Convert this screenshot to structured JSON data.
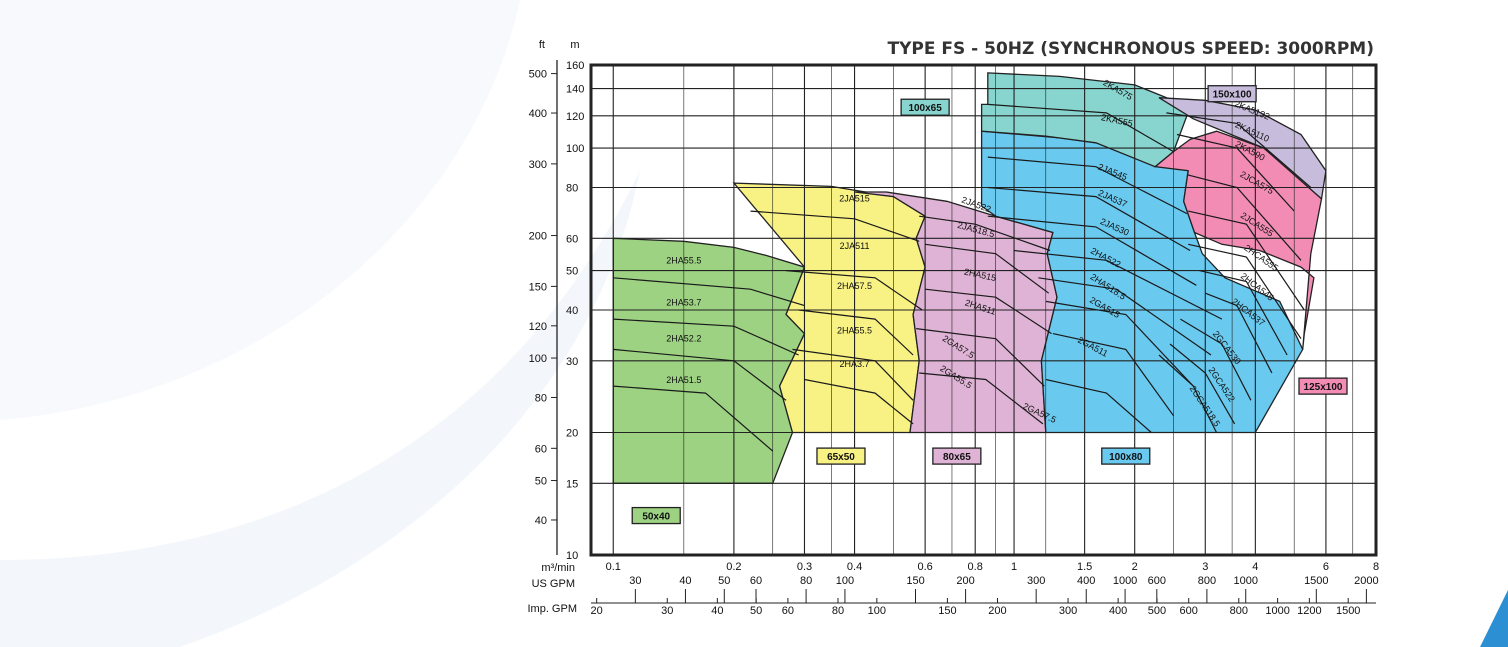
{
  "chart_data": {
    "type": "area",
    "title": "TYPE FS - 50HZ (SYNCHRONOUS SPEED: 3000RPM)",
    "unit_labels": {
      "ft": "ft",
      "m": "m",
      "flow_m3": "m³/min",
      "us_gpm": "US GPM",
      "imp_gpm": "Imp. GPM"
    },
    "y_m_ticks": [
      "160",
      "140",
      "120",
      "100",
      "80",
      "60",
      "50",
      "40",
      "30",
      "20",
      "15",
      "10"
    ],
    "y_ft_ticks": [
      "500",
      "400",
      "300",
      "200",
      "150",
      "120",
      "100",
      "80",
      "60",
      "50",
      "40"
    ],
    "x_m3_ticks": [
      "0.1",
      "0.2",
      "0.3",
      "0.4",
      "0.6",
      "0.8",
      "1",
      "1.5",
      "2",
      "3",
      "4",
      "6",
      "8"
    ],
    "x_us_ticks": [
      "30",
      "40",
      "50",
      "60",
      "80",
      "100",
      "150",
      "200",
      "300",
      "400",
      "1000",
      "600",
      "800",
      "1000",
      "1500",
      "2000"
    ],
    "x_imp_ticks": [
      "20",
      "30",
      "40",
      "50",
      "60",
      "80",
      "100",
      "150",
      "200",
      "300",
      "400",
      "500",
      "600",
      "800",
      "1000",
      "1200",
      "1500"
    ],
    "x_scale": "log",
    "y_scale": "log",
    "xlim_m3min": [
      0.088,
      8
    ],
    "ylim_m": [
      10,
      160
    ],
    "regions": [
      {
        "name": "50x40",
        "color": "#9dd283",
        "curves": [
          "2HA55.5",
          "2HA53.7",
          "2HA52.2",
          "2HA51.5"
        ]
      },
      {
        "name": "65x50",
        "color": "#f8f184",
        "curves": [
          "2JA515",
          "2JA511",
          "2HA57.5",
          "2HA55.5",
          "2HA3.7"
        ]
      },
      {
        "name": "80x65",
        "color": "#dfb3d6",
        "curves": [
          "2JA522",
          "2JA518.5",
          "2HA515",
          "2HA511",
          "2GA57.5",
          "2GA55.5"
        ]
      },
      {
        "name": "100x80",
        "color": "#69c9ef",
        "curves": [
          "2JA545",
          "2JA537",
          "2JA530",
          "2HA522",
          "2HA518.5",
          "2GA515",
          "2GA511",
          "2GA57.5"
        ]
      },
      {
        "name": "100x65",
        "color": "#88d4ce",
        "curves": [
          "2KA575",
          "2KA555"
        ]
      },
      {
        "name": "150x100",
        "color": "#c8bcdc",
        "curves": [
          "2KA5132",
          "2KA5110",
          "2KA590"
        ]
      },
      {
        "name": "125x100",
        "color": "#f28cb4",
        "curves": [
          "2JCA575",
          "2JCA555",
          "2HCA555",
          "2HCA545",
          "2HCA537",
          "2GCA530",
          "2GCA522",
          "2GCA518.5"
        ]
      }
    ]
  }
}
